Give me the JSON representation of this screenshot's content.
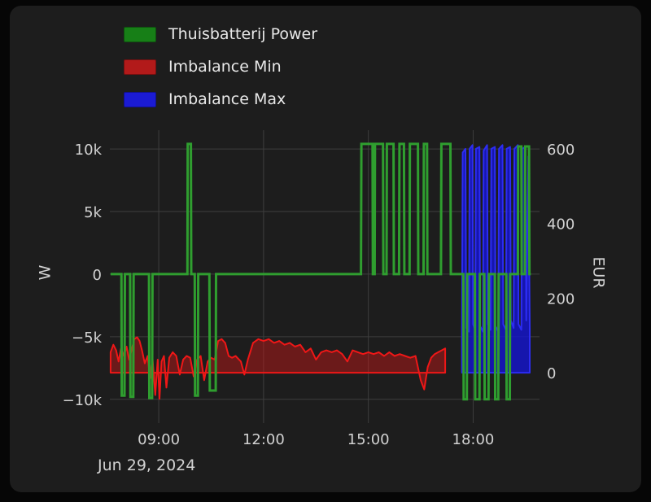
{
  "legend": {
    "items": [
      {
        "label": "Thuisbatterij Power",
        "color": "#177f17"
      },
      {
        "label": "Imbalance Min",
        "color": "#b21a1a"
      },
      {
        "label": "Imbalance Max",
        "color": "#1b1bd4"
      }
    ]
  },
  "chart_data": {
    "type": "line",
    "title": "",
    "x_axis": {
      "range_hours": [
        7.6,
        19.9
      ],
      "ticks": [
        {
          "t": 9,
          "label": "09:00"
        },
        {
          "t": 12,
          "label": "12:00"
        },
        {
          "t": 15,
          "label": "15:00"
        },
        {
          "t": 18,
          "label": "18:00"
        }
      ],
      "date_label": "Jun 29, 2024"
    },
    "left_axis": {
      "title": "W",
      "range": [
        -11900,
        11500
      ],
      "ticks": [
        {
          "v": 10000,
          "label": "10k"
        },
        {
          "v": 5000,
          "label": "5k"
        },
        {
          "v": 0,
          "label": "0"
        },
        {
          "v": -5000,
          "label": "−5k"
        },
        {
          "v": -10000,
          "label": "−10k"
        }
      ]
    },
    "right_axis": {
      "title": "EUR",
      "range": [
        -135,
        650
      ],
      "ticks": [
        {
          "v": 600,
          "label": "600"
        },
        {
          "v": 400,
          "label": "400"
        },
        {
          "v": 200,
          "label": "200"
        },
        {
          "v": 0,
          "label": "0"
        }
      ]
    },
    "series": [
      {
        "name": "Thuisbatterij Power",
        "axis": "left",
        "unit": "W",
        "color": "#2f9e2f",
        "fill": null,
        "fill_to": null,
        "points": [
          [
            7.62,
            0
          ],
          [
            7.93,
            0
          ],
          [
            7.94,
            -9700
          ],
          [
            8.02,
            -9700
          ],
          [
            8.03,
            0
          ],
          [
            8.18,
            0
          ],
          [
            8.19,
            -9800
          ],
          [
            8.27,
            -9800
          ],
          [
            8.28,
            0
          ],
          [
            8.72,
            0
          ],
          [
            8.73,
            -9900
          ],
          [
            8.81,
            -9900
          ],
          [
            8.82,
            0
          ],
          [
            9.82,
            0
          ],
          [
            9.83,
            10400
          ],
          [
            9.92,
            10400
          ],
          [
            9.93,
            0
          ],
          [
            10.03,
            0
          ],
          [
            10.04,
            -9700
          ],
          [
            10.12,
            -9700
          ],
          [
            10.13,
            0
          ],
          [
            10.45,
            0
          ],
          [
            10.46,
            -9300
          ],
          [
            10.63,
            -9300
          ],
          [
            10.64,
            0
          ],
          [
            14.79,
            0
          ],
          [
            14.8,
            10400
          ],
          [
            15.12,
            10400
          ],
          [
            15.13,
            0
          ],
          [
            15.18,
            0
          ],
          [
            15.19,
            10400
          ],
          [
            15.42,
            10400
          ],
          [
            15.43,
            0
          ],
          [
            15.52,
            0
          ],
          [
            15.53,
            10400
          ],
          [
            15.72,
            10400
          ],
          [
            15.73,
            0
          ],
          [
            15.88,
            0
          ],
          [
            15.89,
            10400
          ],
          [
            16.02,
            10400
          ],
          [
            16.03,
            0
          ],
          [
            16.18,
            0
          ],
          [
            16.19,
            10400
          ],
          [
            16.42,
            10400
          ],
          [
            16.43,
            0
          ],
          [
            16.58,
            0
          ],
          [
            16.59,
            10400
          ],
          [
            16.68,
            10400
          ],
          [
            16.69,
            0
          ],
          [
            17.08,
            0
          ],
          [
            17.09,
            10400
          ],
          [
            17.35,
            10400
          ],
          [
            17.36,
            0
          ],
          [
            17.72,
            0
          ],
          [
            17.73,
            -10000
          ],
          [
            17.82,
            -10000
          ],
          [
            17.83,
            0
          ],
          [
            18.05,
            0
          ],
          [
            18.06,
            -10000
          ],
          [
            18.18,
            -10000
          ],
          [
            18.19,
            0
          ],
          [
            18.32,
            0
          ],
          [
            18.33,
            -10000
          ],
          [
            18.44,
            -10000
          ],
          [
            18.45,
            0
          ],
          [
            18.62,
            0
          ],
          [
            18.63,
            -10000
          ],
          [
            18.72,
            -10000
          ],
          [
            18.73,
            0
          ],
          [
            18.95,
            0
          ],
          [
            18.96,
            -10000
          ],
          [
            19.05,
            -10000
          ],
          [
            19.06,
            0
          ],
          [
            19.28,
            0
          ],
          [
            19.29,
            10200
          ],
          [
            19.38,
            10200
          ],
          [
            19.39,
            0
          ],
          [
            19.48,
            0
          ],
          [
            19.49,
            10200
          ],
          [
            19.6,
            10200
          ],
          [
            19.61,
            0
          ],
          [
            19.65,
            0
          ]
        ]
      },
      {
        "name": "Imbalance Min",
        "axis": "right",
        "unit": "EUR",
        "color": "#ef1717",
        "fill": "rgba(205,25,25,0.45)",
        "fill_to": 0,
        "points": [
          [
            7.62,
            55
          ],
          [
            7.7,
            75
          ],
          [
            7.78,
            60
          ],
          [
            7.85,
            30
          ],
          [
            7.92,
            65
          ],
          [
            8.0,
            45
          ],
          [
            8.08,
            70
          ],
          [
            8.15,
            35
          ],
          [
            8.22,
            60
          ],
          [
            8.3,
            90
          ],
          [
            8.38,
            95
          ],
          [
            8.45,
            85
          ],
          [
            8.52,
            60
          ],
          [
            8.6,
            25
          ],
          [
            8.68,
            45
          ],
          [
            8.75,
            -15
          ],
          [
            8.82,
            40
          ],
          [
            8.9,
            -60
          ],
          [
            8.97,
            35
          ],
          [
            9.02,
            -70
          ],
          [
            9.08,
            30
          ],
          [
            9.15,
            45
          ],
          [
            9.22,
            -40
          ],
          [
            9.3,
            40
          ],
          [
            9.4,
            55
          ],
          [
            9.5,
            45
          ],
          [
            9.6,
            -5
          ],
          [
            9.7,
            35
          ],
          [
            9.8,
            45
          ],
          [
            9.9,
            40
          ],
          [
            10.0,
            -10
          ],
          [
            10.1,
            35
          ],
          [
            10.2,
            45
          ],
          [
            10.3,
            -20
          ],
          [
            10.4,
            30
          ],
          [
            10.5,
            40
          ],
          [
            10.6,
            35
          ],
          [
            10.7,
            85
          ],
          [
            10.8,
            90
          ],
          [
            10.9,
            80
          ],
          [
            11.0,
            45
          ],
          [
            11.1,
            40
          ],
          [
            11.2,
            45
          ],
          [
            11.35,
            30
          ],
          [
            11.45,
            -5
          ],
          [
            11.55,
            35
          ],
          [
            11.7,
            80
          ],
          [
            11.85,
            90
          ],
          [
            12.0,
            85
          ],
          [
            12.15,
            90
          ],
          [
            12.3,
            80
          ],
          [
            12.45,
            85
          ],
          [
            12.6,
            75
          ],
          [
            12.75,
            80
          ],
          [
            12.9,
            70
          ],
          [
            13.05,
            75
          ],
          [
            13.2,
            55
          ],
          [
            13.35,
            65
          ],
          [
            13.5,
            35
          ],
          [
            13.65,
            55
          ],
          [
            13.8,
            60
          ],
          [
            13.95,
            55
          ],
          [
            14.1,
            60
          ],
          [
            14.25,
            50
          ],
          [
            14.4,
            30
          ],
          [
            14.55,
            60
          ],
          [
            14.7,
            55
          ],
          [
            14.85,
            50
          ],
          [
            15.0,
            55
          ],
          [
            15.15,
            50
          ],
          [
            15.3,
            55
          ],
          [
            15.45,
            45
          ],
          [
            15.6,
            55
          ],
          [
            15.75,
            45
          ],
          [
            15.9,
            50
          ],
          [
            16.05,
            45
          ],
          [
            16.2,
            40
          ],
          [
            16.35,
            45
          ],
          [
            16.5,
            -20
          ],
          [
            16.6,
            -45
          ],
          [
            16.7,
            15
          ],
          [
            16.8,
            40
          ],
          [
            16.9,
            50
          ],
          [
            17.0,
            55
          ],
          [
            17.1,
            60
          ],
          [
            17.2,
            65
          ]
        ]
      },
      {
        "name": "Imbalance Max",
        "axis": "right",
        "unit": "EUR",
        "color": "#2c2cf2",
        "fill": "rgba(21,21,210,0.8)",
        "fill_to": 0,
        "points": [
          [
            17.68,
            110
          ],
          [
            17.7,
            590
          ],
          [
            17.78,
            600
          ],
          [
            17.8,
            120
          ],
          [
            17.88,
            110
          ],
          [
            17.9,
            600
          ],
          [
            17.98,
            610
          ],
          [
            18.0,
            130
          ],
          [
            18.06,
            115
          ],
          [
            18.08,
            600
          ],
          [
            18.18,
            605
          ],
          [
            18.2,
            125
          ],
          [
            18.28,
            110
          ],
          [
            18.3,
            595
          ],
          [
            18.4,
            610
          ],
          [
            18.42,
            130
          ],
          [
            18.5,
            115
          ],
          [
            18.52,
            600
          ],
          [
            18.62,
            605
          ],
          [
            18.64,
            125
          ],
          [
            18.72,
            110
          ],
          [
            18.74,
            600
          ],
          [
            18.84,
            610
          ],
          [
            18.86,
            130
          ],
          [
            18.94,
            115
          ],
          [
            18.96,
            600
          ],
          [
            19.06,
            605
          ],
          [
            19.08,
            140
          ],
          [
            19.16,
            120
          ],
          [
            19.18,
            600
          ],
          [
            19.28,
            610
          ],
          [
            19.3,
            130
          ],
          [
            19.38,
            115
          ],
          [
            19.4,
            600
          ],
          [
            19.5,
            605
          ],
          [
            19.52,
            140
          ],
          [
            19.58,
            580
          ],
          [
            19.62,
            120
          ]
        ]
      }
    ]
  }
}
